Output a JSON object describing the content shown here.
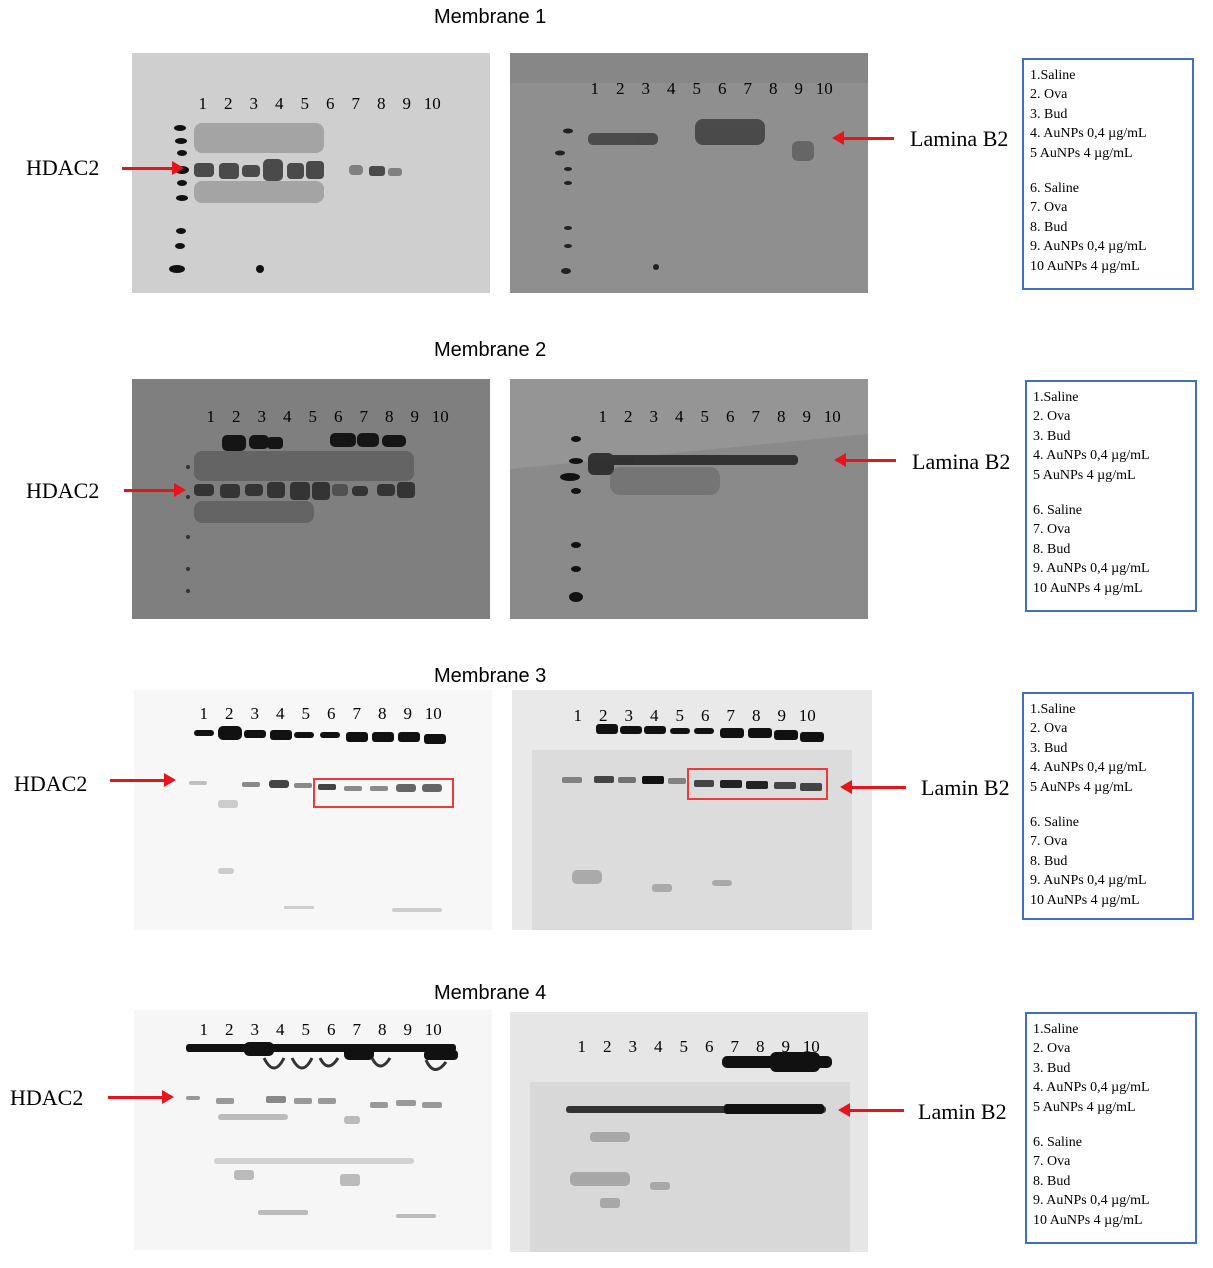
{
  "lanes": [
    "1",
    "2",
    "3",
    "4",
    "5",
    "6",
    "7",
    "8",
    "9",
    "10"
  ],
  "legend_items": [
    "1.Saline",
    "2. Ova",
    "3. Bud",
    "4. AuNPs 0,4 µg/mL",
    "5 AuNPs  4 µg/mL",
    "6. Saline",
    "7. Ova",
    "8. Bud",
    "9. AuNPs 0,4 µg/mL",
    "10 AuNPs 4 µg/mL"
  ],
  "membranes": [
    {
      "title": "Membrane 1",
      "left_label": "HDAC2",
      "right_label": "Lamina B2"
    },
    {
      "title": "Membrane 2",
      "left_label": "HDAC2",
      "right_label": "Lamina B2"
    },
    {
      "title": "Membrane 3",
      "left_label": "HDAC2",
      "right_label": "Lamin B2"
    },
    {
      "title": "Membrane 4",
      "left_label": "HDAC2",
      "right_label": "Lamin B2"
    }
  ],
  "colors": {
    "arrow": "#e8141b",
    "legend_border": "#3f6ec2",
    "highlight_box": "#ee3a3a"
  }
}
